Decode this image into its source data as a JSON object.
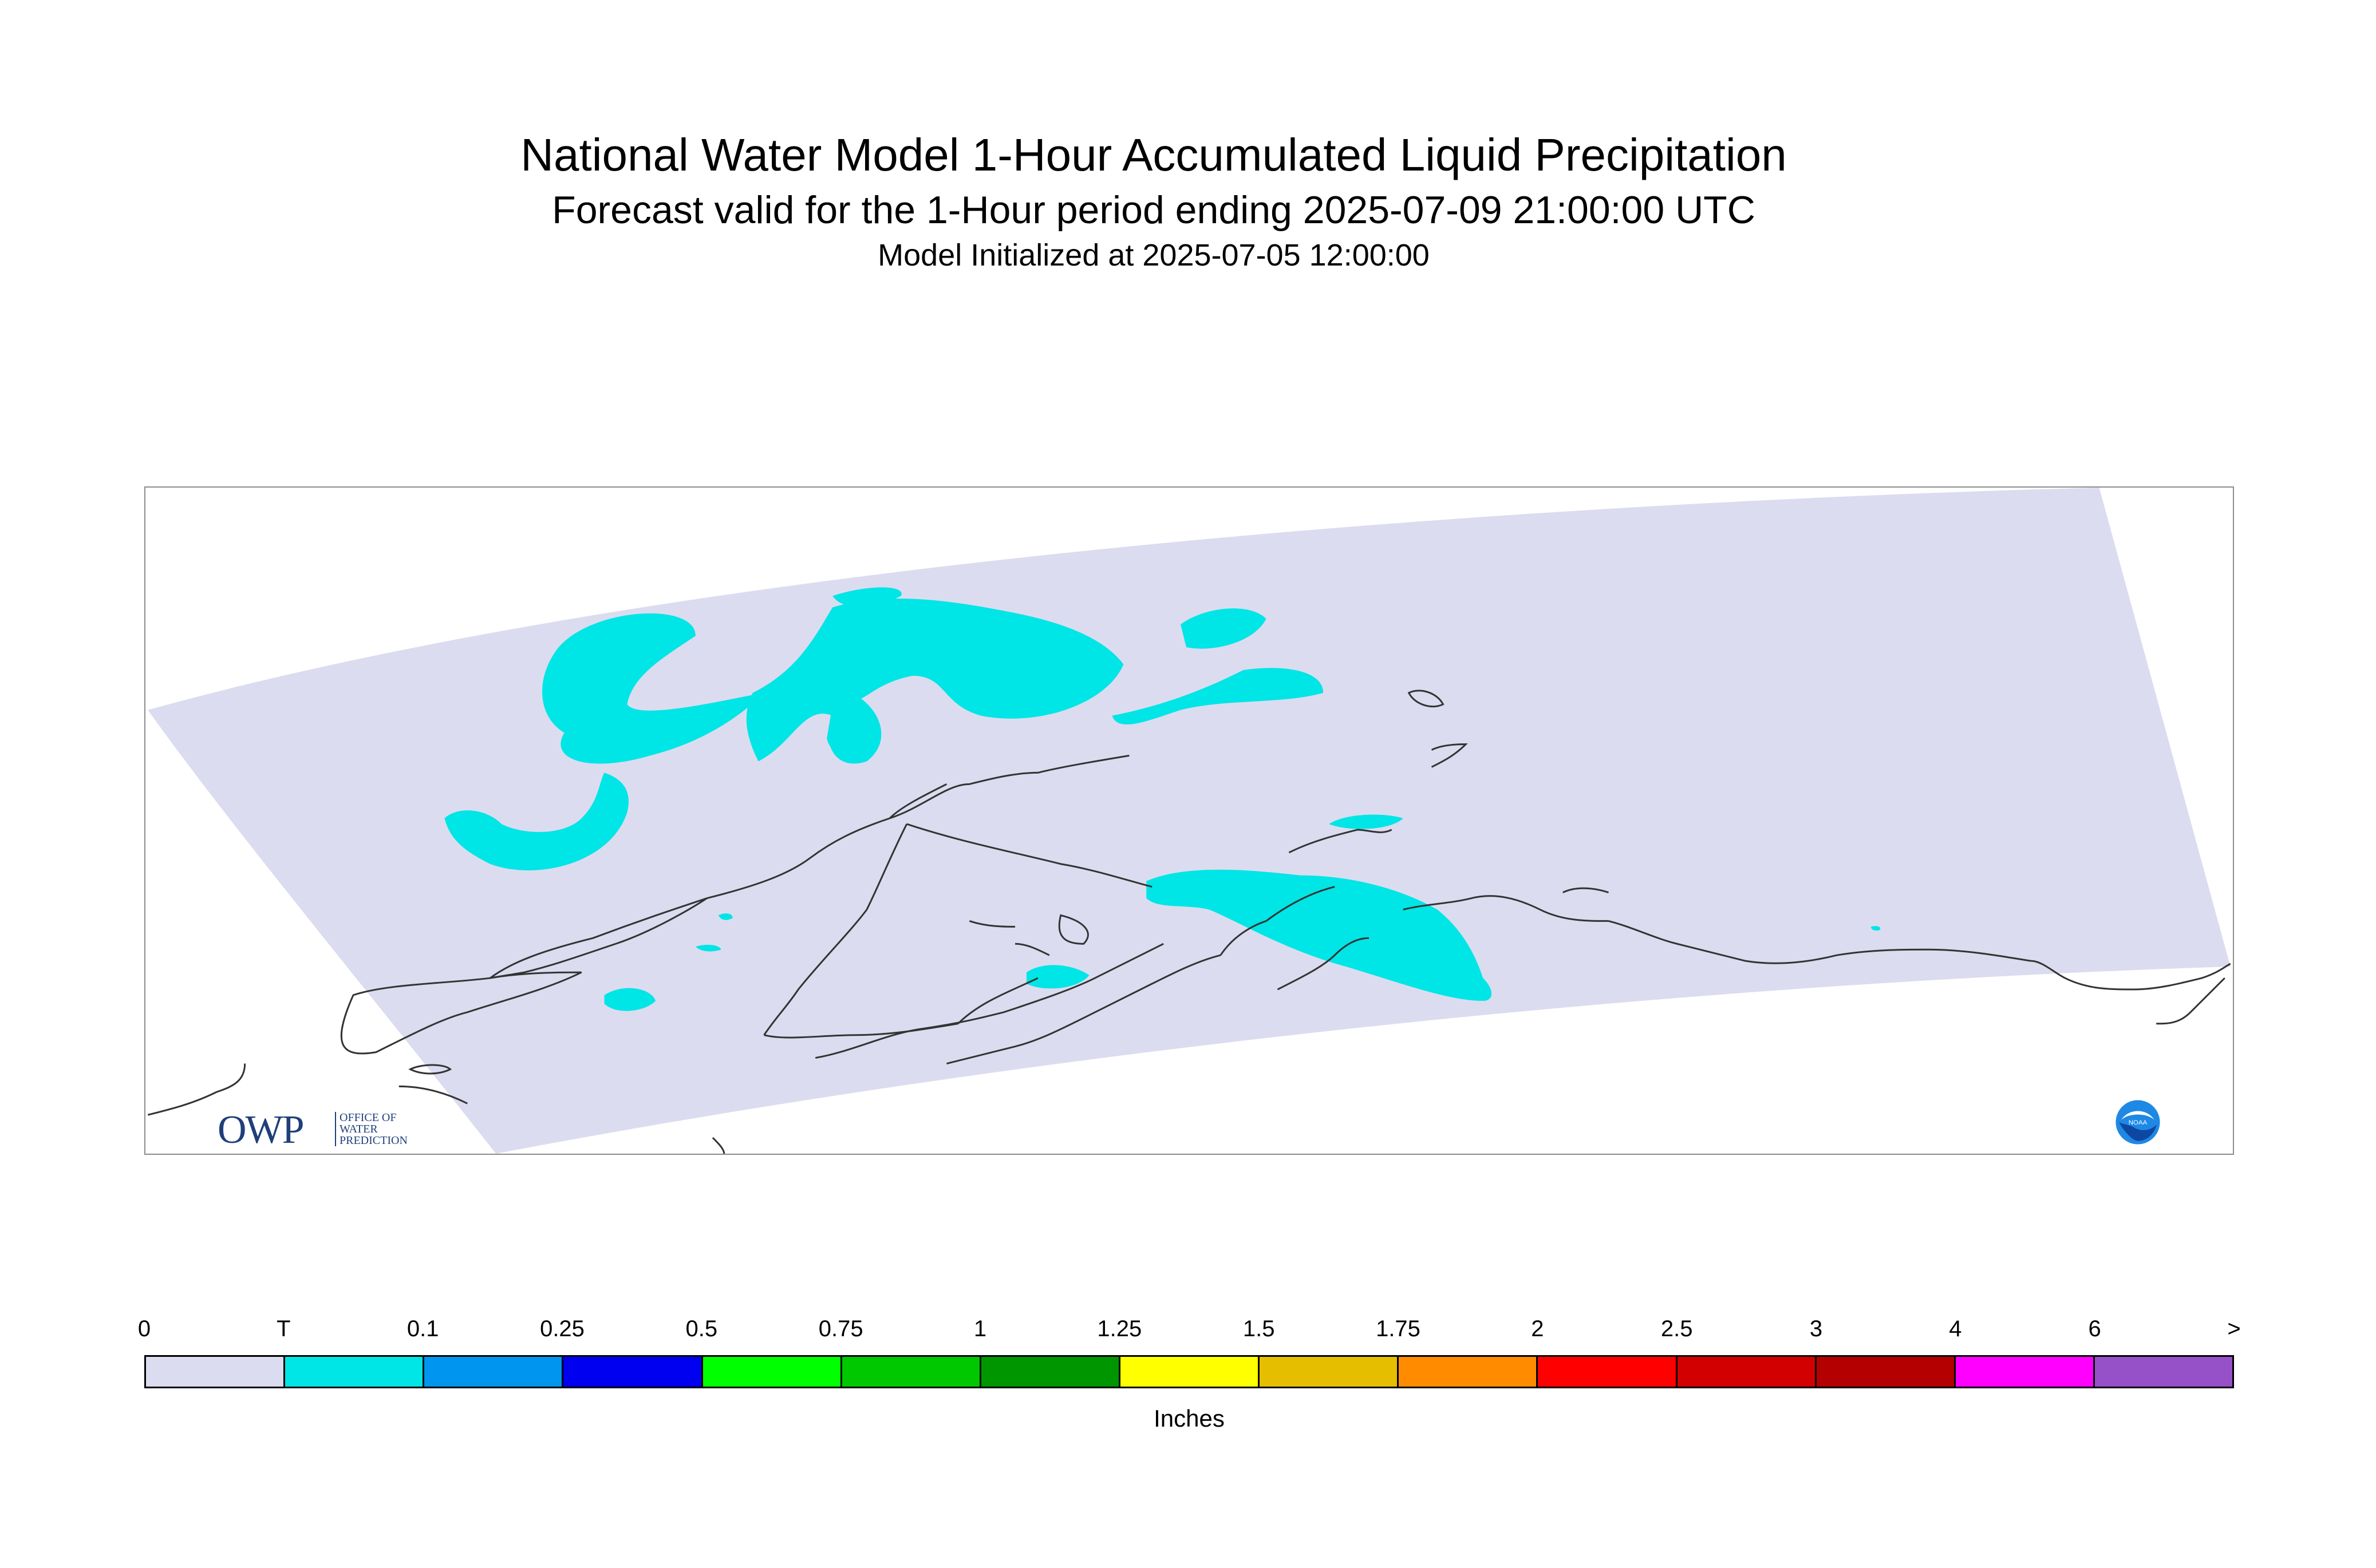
{
  "title": {
    "main": "National Water Model 1-Hour Accumulated Liquid Precipitation",
    "subtitle": "Forecast valid for the 1-Hour period ending 2025-07-09 21:00:00 UTC",
    "init": "Model Initialized at 2025-07-05 12:00:00"
  },
  "colors": {
    "domain_fill": "#dcdcf0",
    "precip_trace": "#00e5e5",
    "coastline": "#333333"
  },
  "logos": {
    "owp": {
      "letters": "OWP",
      "text": "OFFICE OF WATER PREDICTION"
    },
    "noaa": {
      "text": "NOAA"
    }
  },
  "legend": {
    "units": "Inches",
    "tick_labels": [
      "0",
      "T",
      "0.1",
      "0.25",
      "0.5",
      "0.75",
      "1",
      "1.25",
      "1.5",
      "1.75",
      "2",
      "2.5",
      "3",
      "4",
      "6",
      ">"
    ],
    "colors": [
      "#dcdcf0",
      "#00e5e5",
      "#0096f0",
      "#0000f0",
      "#00ff00",
      "#00c800",
      "#009600",
      "#ffff00",
      "#e6be00",
      "#ff8c00",
      "#ff0000",
      "#d20000",
      "#b40000",
      "#ff00ff",
      "#9650c8"
    ]
  }
}
